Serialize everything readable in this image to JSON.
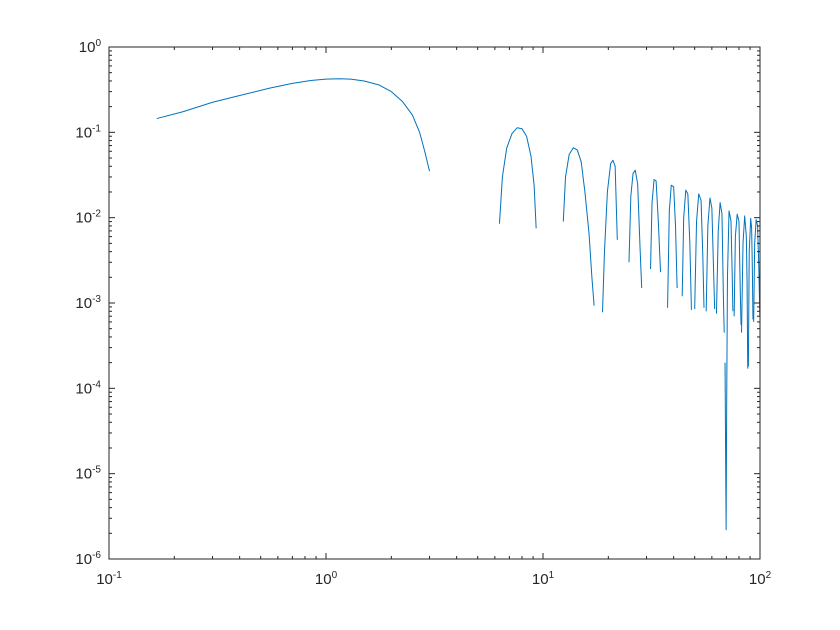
{
  "chart_data": {
    "type": "line",
    "title": "",
    "xlabel": "",
    "ylabel": "",
    "xscale": "log",
    "yscale": "log",
    "xlim": [
      0.1,
      100
    ],
    "ylim": [
      1e-06,
      1
    ],
    "grid": false,
    "legend": "none",
    "x_ticks": [
      {
        "base": "10",
        "exp": "-1"
      },
      {
        "base": "10",
        "exp": "0"
      },
      {
        "base": "10",
        "exp": "1"
      },
      {
        "base": "10",
        "exp": "2"
      }
    ],
    "y_ticks": [
      {
        "base": "10",
        "exp": "-6"
      },
      {
        "base": "10",
        "exp": "-5"
      },
      {
        "base": "10",
        "exp": "-4"
      },
      {
        "base": "10",
        "exp": "-3"
      },
      {
        "base": "10",
        "exp": "-2"
      },
      {
        "base": "10",
        "exp": "-1"
      },
      {
        "base": "10",
        "exp": "0"
      }
    ],
    "series": [
      {
        "color": "#0072BD",
        "segments": [
          [
            [
              0.166,
              0.145
            ],
            [
              0.22,
              0.175
            ],
            [
              0.3,
              0.225
            ],
            [
              0.4,
              0.27
            ],
            [
              0.55,
              0.33
            ],
            [
              0.7,
              0.375
            ],
            [
              0.85,
              0.405
            ],
            [
              1.0,
              0.42
            ],
            [
              1.15,
              0.425
            ],
            [
              1.3,
              0.42
            ],
            [
              1.5,
              0.4
            ],
            [
              1.75,
              0.36
            ],
            [
              2.0,
              0.3
            ],
            [
              2.25,
              0.23
            ],
            [
              2.5,
              0.16
            ],
            [
              2.7,
              0.1
            ],
            [
              2.85,
              0.06
            ],
            [
              3.0,
              0.035
            ]
          ],
          [
            [
              6.3,
              0.0085
            ],
            [
              6.5,
              0.03
            ],
            [
              6.8,
              0.065
            ],
            [
              7.2,
              0.097
            ],
            [
              7.6,
              0.113
            ],
            [
              8.0,
              0.11
            ],
            [
              8.4,
              0.09
            ],
            [
              8.8,
              0.053
            ],
            [
              9.1,
              0.024
            ],
            [
              9.3,
              0.0075
            ]
          ],
          [
            [
              12.4,
              0.009
            ],
            [
              12.7,
              0.03
            ],
            [
              13.2,
              0.055
            ],
            [
              13.8,
              0.066
            ],
            [
              14.4,
              0.062
            ],
            [
              15.0,
              0.045
            ],
            [
              15.6,
              0.02
            ],
            [
              16.3,
              0.0065
            ],
            [
              16.8,
              0.002
            ],
            [
              17.2,
              0.00093
            ]
          ],
          [
            [
              18.8,
              0.00078
            ],
            [
              19.2,
              0.004
            ],
            [
              19.8,
              0.02
            ],
            [
              20.5,
              0.043
            ],
            [
              21.0,
              0.047
            ],
            [
              21.5,
              0.04
            ],
            [
              22.0,
              0.0055
            ]
          ],
          [
            [
              24.9,
              0.003
            ],
            [
              25.4,
              0.018
            ],
            [
              26.0,
              0.033
            ],
            [
              26.6,
              0.036
            ],
            [
              27.3,
              0.025
            ],
            [
              28.0,
              0.0045
            ],
            [
              28.5,
              0.0015
            ]
          ],
          [
            [
              31.3,
              0.0025
            ],
            [
              31.8,
              0.015
            ],
            [
              32.5,
              0.028
            ],
            [
              33.2,
              0.027
            ],
            [
              34.0,
              0.009
            ],
            [
              34.8,
              0.0023
            ]
          ],
          [
            [
              37.5,
              0.00088
            ],
            [
              38.2,
              0.012
            ],
            [
              39.0,
              0.024
            ],
            [
              40.0,
              0.023
            ],
            [
              40.8,
              0.008
            ],
            [
              41.5,
              0.0015
            ]
          ],
          [
            [
              43.8,
              0.0012
            ],
            [
              44.5,
              0.01
            ],
            [
              45.5,
              0.021
            ],
            [
              46.5,
              0.019
            ],
            [
              47.5,
              0.005
            ],
            [
              48.3,
              0.00083
            ]
          ],
          [
            [
              50.0,
              0.00085
            ],
            [
              51.0,
              0.009
            ],
            [
              52.2,
              0.019
            ],
            [
              53.5,
              0.016
            ],
            [
              54.5,
              0.0036
            ],
            [
              55.2,
              0.00088
            ]
          ],
          [
            [
              56.5,
              0.0008
            ],
            [
              57.5,
              0.008
            ],
            [
              58.8,
              0.017
            ],
            [
              60.0,
              0.013
            ],
            [
              61.0,
              0.0028
            ],
            [
              61.8,
              0.00085
            ]
          ],
          [
            [
              63.0,
              0.00075
            ],
            [
              64.2,
              0.007
            ],
            [
              65.5,
              0.015
            ],
            [
              66.8,
              0.011
            ],
            [
              67.8,
              0.0012
            ],
            [
              68.4,
              0.00045
            ]
          ],
          [
            [
              69.0,
              0.0002
            ],
            [
              69.4,
              2e-05
            ],
            [
              69.8,
              2.2e-06
            ],
            [
              70.2,
              6e-05
            ],
            [
              70.8,
              0.002
            ],
            [
              72.0,
              0.012
            ],
            [
              73.5,
              0.0092
            ],
            [
              74.5,
              0.002
            ],
            [
              75.0,
              0.0008
            ]
          ],
          [
            [
              76.0,
              0.0007
            ],
            [
              77.0,
              0.006
            ],
            [
              78.5,
              0.011
            ],
            [
              80.0,
              0.009
            ],
            [
              81.2,
              0.0012
            ],
            [
              81.8,
              0.00055
            ]
          ],
          [
            [
              82.2,
              0.00045
            ],
            [
              83.5,
              0.005
            ],
            [
              85.0,
              0.0105
            ],
            [
              86.5,
              0.006
            ],
            [
              87.2,
              0.0017
            ],
            [
              87.8,
              0.00017
            ]
          ],
          [
            [
              88.4,
              0.00018
            ],
            [
              89.2,
              0.004
            ],
            [
              90.6,
              0.0098
            ],
            [
              91.5,
              0.0075
            ],
            [
              92.2,
              0.0025
            ],
            [
              92.8,
              0.00064
            ]
          ],
          [
            [
              93.5,
              0.0006
            ],
            [
              94.5,
              0.005
            ],
            [
              96.0,
              0.0095
            ],
            [
              97.5,
              0.008
            ],
            [
              98.8,
              0.0025
            ],
            [
              99.8,
              0.0007
            ],
            [
              100,
              0.0009
            ]
          ]
        ]
      }
    ]
  }
}
